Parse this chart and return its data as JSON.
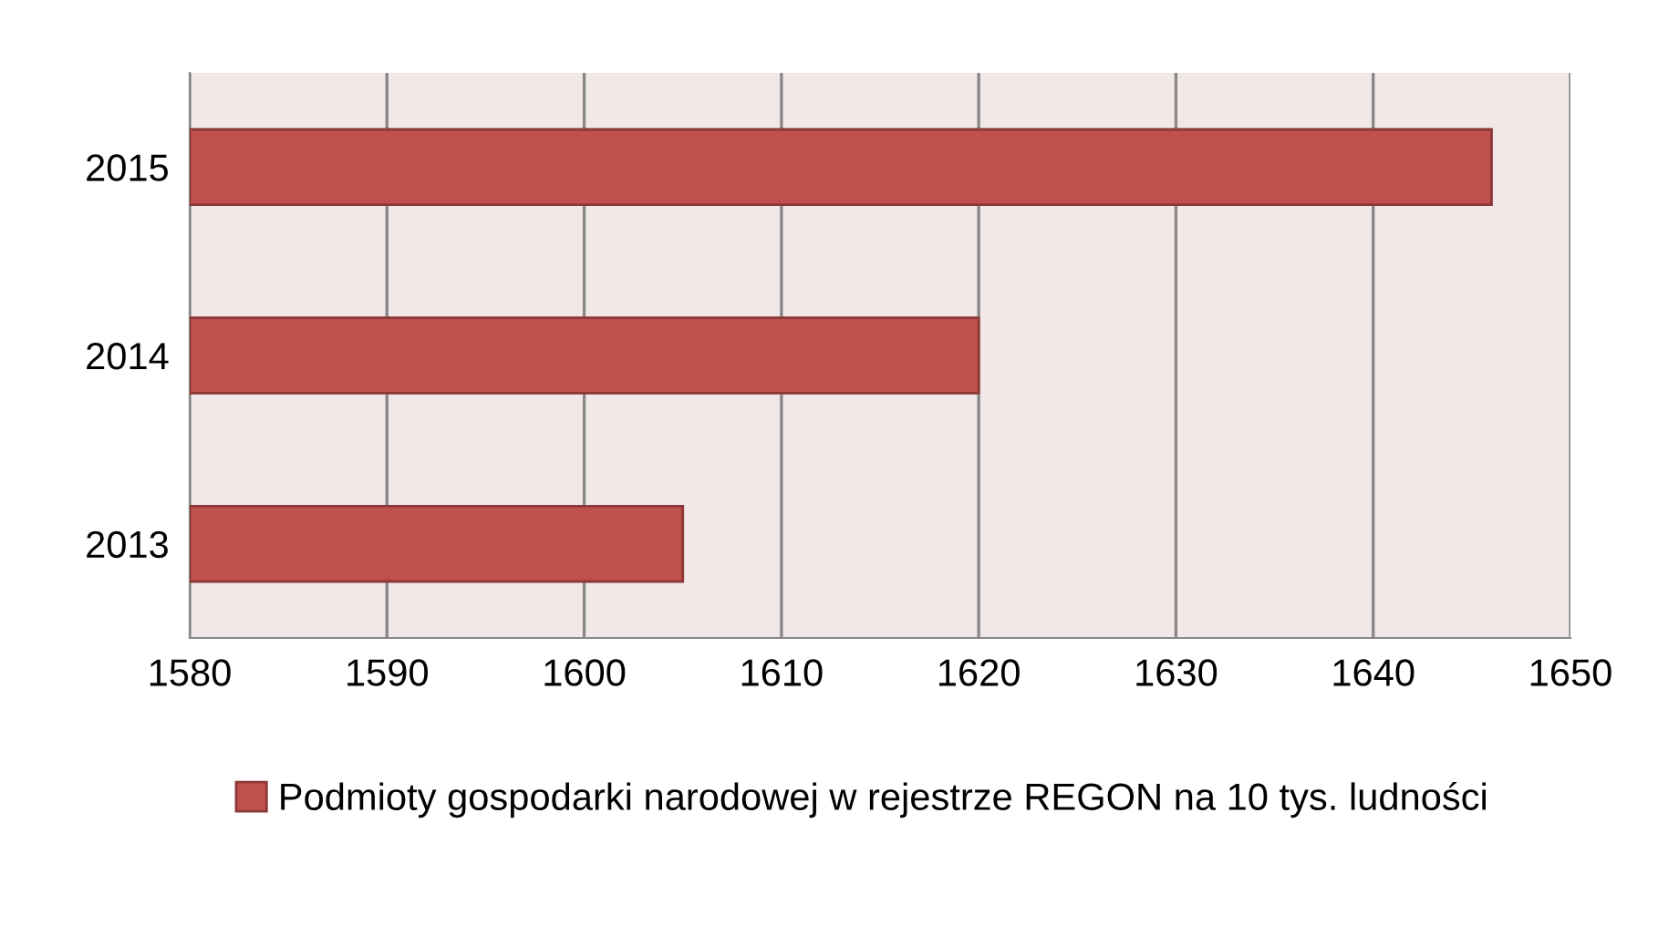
{
  "chart_data": {
    "type": "bar",
    "orientation": "horizontal",
    "categories": [
      "2015",
      "2014",
      "2013"
    ],
    "series": [
      {
        "name": "Podmioty gospodarki narodowej w rejestrze REGON na 10 tys. ludności",
        "color": "#c0504d",
        "values": [
          1646,
          1620,
          1605
        ]
      }
    ],
    "xlim": [
      1580,
      1650
    ],
    "xticks": [
      1580,
      1590,
      1600,
      1610,
      1620,
      1630,
      1640,
      1650
    ],
    "grid": "x",
    "legend": "bottom"
  }
}
